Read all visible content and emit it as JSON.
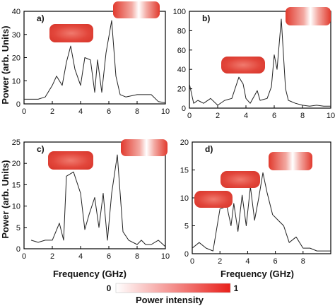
{
  "colors": {
    "series": "#222222",
    "hot": "#e8352a",
    "cold": "#ffffff",
    "frame": "#000000"
  },
  "axis_titles": {
    "ylabel": "Power (arb. Units)",
    "xlabel_c": "Frequency (GHz)",
    "xlabel_d": "Frequency (GHz)"
  },
  "colorbar": {
    "min_label": "0",
    "max_label": "1",
    "title": "Power intensity",
    "range": [
      0,
      1
    ]
  },
  "chart_data": [
    {
      "id": "a",
      "type": "line",
      "panel_label": "a)",
      "xlim": [
        0,
        10
      ],
      "ylim": [
        0,
        40
      ],
      "xticks": [
        "0",
        "2",
        "4",
        "6",
        "8",
        "10"
      ],
      "yticks": [
        "0",
        "10",
        "20",
        "30",
        "40"
      ],
      "x": [
        0,
        1,
        1.5,
        2,
        2.3,
        2.7,
        3,
        3.3,
        3.6,
        4,
        4.3,
        4.7,
        5,
        5.2,
        5.5,
        5.8,
        6.2,
        6.5,
        6.8,
        7.2,
        8,
        9,
        9.5,
        10
      ],
      "y": [
        2,
        2,
        3,
        8,
        12,
        8,
        18,
        25,
        15,
        8,
        20,
        19,
        5,
        19,
        5,
        22,
        36,
        12,
        4,
        3,
        4,
        4,
        1,
        0.5
      ]
    },
    {
      "id": "b",
      "type": "line",
      "panel_label": "b)",
      "xlim": [
        0,
        10
      ],
      "ylim": [
        0,
        100
      ],
      "xticks": [
        "0",
        "2",
        "4",
        "6",
        "8",
        "10"
      ],
      "yticks": [
        "0",
        "20",
        "40",
        "60",
        "80",
        "100"
      ],
      "x": [
        0,
        0.3,
        0.6,
        1,
        1.5,
        2,
        2.5,
        3,
        3.5,
        3.8,
        4,
        4.3,
        4.8,
        5,
        5.5,
        5.8,
        6,
        6.2,
        6.5,
        6.8,
        7,
        7.5,
        8,
        8.5,
        9,
        9.5,
        10
      ],
      "y": [
        25,
        5,
        8,
        5,
        10,
        3,
        8,
        10,
        32,
        25,
        10,
        5,
        18,
        8,
        10,
        22,
        55,
        40,
        92,
        20,
        8,
        5,
        3,
        2,
        3,
        2,
        2
      ]
    },
    {
      "id": "c",
      "type": "line",
      "panel_label": "c)",
      "xlim": [
        0,
        10
      ],
      "ylim": [
        0,
        25
      ],
      "xticks": [
        "0",
        "2",
        "4",
        "6",
        "8",
        "10"
      ],
      "yticks": [
        "0",
        "5",
        "10",
        "15",
        "20",
        "25"
      ],
      "x": [
        0.5,
        1,
        1.5,
        2,
        2.5,
        2.8,
        3,
        3.5,
        4,
        4.3,
        4.6,
        5,
        5.3,
        5.6,
        5.9,
        6.2,
        6.6,
        7,
        7.4,
        8,
        8.3,
        8.6,
        9,
        9.5,
        10
      ],
      "y": [
        2,
        1.5,
        2,
        2,
        6,
        2,
        17,
        18,
        13,
        4.5,
        8,
        12,
        5,
        13,
        2,
        13,
        22,
        4,
        2,
        1,
        2,
        1,
        1,
        2,
        0.5
      ]
    },
    {
      "id": "d",
      "type": "line",
      "panel_label": "d)",
      "xlim": [
        0,
        10
      ],
      "ylim": [
        0,
        20
      ],
      "xticks": [
        "0",
        "2",
        "4",
        "6",
        "8"
      ],
      "yticks": [
        "0",
        "5",
        "10",
        "15",
        "20"
      ],
      "x": [
        0,
        0.5,
        1,
        1.5,
        2,
        2.5,
        2.8,
        3,
        3.3,
        3.6,
        3.9,
        4.2,
        4.5,
        4.8,
        5.1,
        5.4,
        5.8,
        6.2,
        6.6,
        7,
        7.5,
        8,
        8.5,
        9,
        9.5,
        10
      ],
      "y": [
        1,
        2,
        1,
        0.5,
        8,
        8.5,
        5,
        9,
        4,
        10.5,
        5,
        12,
        6,
        10,
        14.5,
        11,
        7,
        6,
        5,
        2,
        3,
        1,
        1,
        0.5,
        0.5,
        0.5
      ]
    }
  ]
}
